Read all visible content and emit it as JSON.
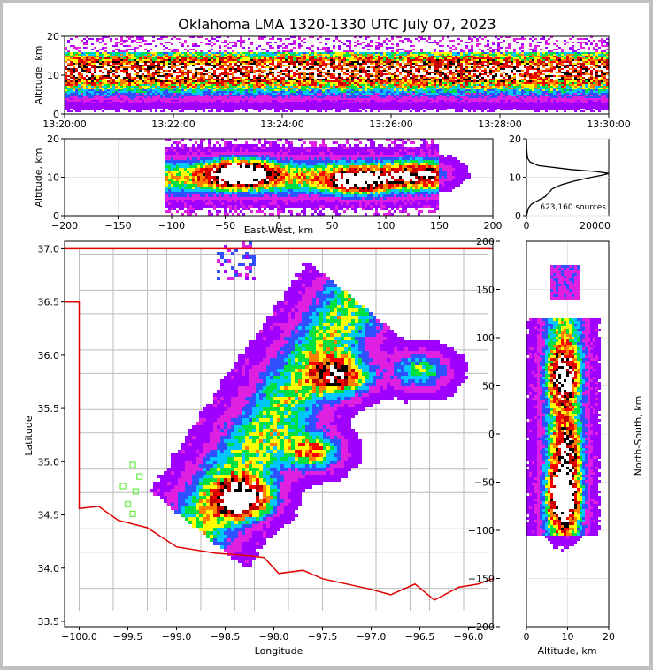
{
  "chart_data": [
    {
      "id": "time-height",
      "type": "heatmap",
      "title": "Oklahoma LMA 1320-1330 UTC July 07, 2023",
      "ylabel": "Altitude, km",
      "xlim": [
        "13:20:00",
        "13:30:00"
      ],
      "ylim": [
        0,
        20
      ],
      "x_ticks": [
        "13:20:00",
        "13:22:00",
        "13:24:00",
        "13:26:00",
        "13:28:00",
        "13:30:00"
      ],
      "y_ticks": [
        "0",
        "10",
        "20"
      ],
      "peak_altitude_km": [
        8,
        14
      ]
    },
    {
      "id": "ew-height",
      "type": "heatmap",
      "xlabel": "East-West, km",
      "ylabel": "Altitude, km",
      "xlim": [
        -200,
        200
      ],
      "ylim": [
        0,
        20
      ],
      "x_ticks": [
        "−200",
        "−150",
        "−100",
        "−50",
        "0",
        "50",
        "100",
        "150",
        "200"
      ],
      "y_ticks": [
        "0",
        "10",
        "20"
      ],
      "cores": [
        {
          "x_km": -35,
          "z_km": 11,
          "intensity": 1.0
        },
        {
          "x_km": 75,
          "z_km": 9,
          "intensity": 0.7
        },
        {
          "x_km": 130,
          "z_km": 11,
          "intensity": 0.45
        }
      ]
    },
    {
      "id": "altitude-histogram",
      "type": "line",
      "annotation": "623,160 sources",
      "xlim": [
        0,
        24000
      ],
      "ylim": [
        0,
        20
      ],
      "x_ticks": [
        "0",
        "20000"
      ],
      "y_ticks": [
        "0",
        "10",
        "20"
      ],
      "profile": [
        {
          "alt": 0,
          "count": 0
        },
        {
          "alt": 1,
          "count": 300
        },
        {
          "alt": 2,
          "count": 600
        },
        {
          "alt": 3,
          "count": 1500
        },
        {
          "alt": 4,
          "count": 3500
        },
        {
          "alt": 5,
          "count": 5500
        },
        {
          "alt": 6,
          "count": 6500
        },
        {
          "alt": 7,
          "count": 7500
        },
        {
          "alt": 8,
          "count": 10000
        },
        {
          "alt": 9,
          "count": 14000
        },
        {
          "alt": 10,
          "count": 19000
        },
        {
          "alt": 10.5,
          "count": 22000
        },
        {
          "alt": 11,
          "count": 24000
        },
        {
          "alt": 11.5,
          "count": 20000
        },
        {
          "alt": 12,
          "count": 13000
        },
        {
          "alt": 13,
          "count": 3500
        },
        {
          "alt": 14,
          "count": 1000
        },
        {
          "alt": 15,
          "count": 300
        },
        {
          "alt": 17,
          "count": 80
        },
        {
          "alt": 20,
          "count": 0
        }
      ]
    },
    {
      "id": "plan-view",
      "type": "heatmap",
      "xlabel": "Longitude",
      "ylabel": "Latitude",
      "xlim": [
        -100.15,
        -95.75
      ],
      "ylim": [
        33.45,
        37.07
      ],
      "x_ticks": [
        "−100.0",
        "−99.5",
        "−99.0",
        "−98.5",
        "−98.0",
        "−97.5",
        "−97.0",
        "−96.5",
        "−96.0"
      ],
      "y_ticks": [
        "33.5",
        "34.0",
        "34.5",
        "35.0",
        "35.5",
        "36.0",
        "36.5",
        "37.0"
      ],
      "cores": [
        {
          "lon": -98.3,
          "lat": 34.65,
          "intensity": 1.0
        },
        {
          "lon": -97.3,
          "lat": 35.8,
          "intensity": 0.75
        },
        {
          "lon": -97.6,
          "lat": 35.1,
          "intensity": 0.6
        },
        {
          "lon": -96.5,
          "lat": 35.85,
          "intensity": 0.45
        }
      ],
      "stations": [
        {
          "lon": -99.45,
          "lat": 34.97
        },
        {
          "lon": -99.38,
          "lat": 34.86
        },
        {
          "lon": -99.55,
          "lat": 34.77
        },
        {
          "lon": -99.42,
          "lat": 34.72
        },
        {
          "lon": -99.5,
          "lat": 34.6
        },
        {
          "lon": -99.45,
          "lat": 34.51
        }
      ]
    },
    {
      "id": "ns-height",
      "type": "heatmap",
      "xlabel": "Altitude, km",
      "ylabel": "North-South, km",
      "xlim": [
        0,
        20
      ],
      "ylim": [
        -200,
        200
      ],
      "x_ticks": [
        "0",
        "10",
        "20"
      ],
      "y_ticks": [
        "−200",
        "−150",
        "−100",
        "−50",
        "0",
        "50",
        "100",
        "150",
        "200"
      ],
      "cores": [
        {
          "y_km": -65,
          "z_km": 9,
          "intensity": 1.0
        },
        {
          "y_km": 60,
          "z_km": 9,
          "intensity": 0.7
        },
        {
          "y_km": -15,
          "z_km": 10,
          "intensity": 0.5
        }
      ]
    }
  ],
  "colors": {
    "scale": [
      "#a000ff",
      "#e020e0",
      "#3050ff",
      "#00c8ff",
      "#00e040",
      "#ffff00",
      "#ff8000",
      "#ff0000",
      "#c00000",
      "#000000",
      "#ffffff"
    ],
    "state_border": "#e00000",
    "county_lines": "#bbbbbb",
    "stations": "#66ee44"
  }
}
